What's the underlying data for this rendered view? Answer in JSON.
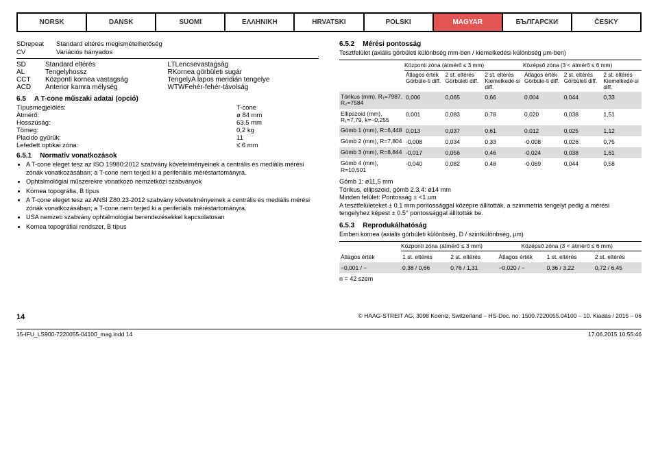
{
  "tabs": [
    "NORSK",
    "DANSK",
    "SUOMI",
    "ΕΛΛΗΝΙΚΗ",
    "HRVATSKI",
    "POLSKI",
    "MAGYAR",
    "БЪЛГАРСКИ",
    "ČESKY"
  ],
  "active_tab": 6,
  "glossary_top": [
    {
      "k": "SDrepeat",
      "v": "Standard eltérés megismételhetőség"
    },
    {
      "k": "CV",
      "v": "Variációs hányados"
    }
  ],
  "glossary_pairs": [
    [
      {
        "k": "SD",
        "v": "Standard eltérés"
      },
      {
        "k": "LT",
        "v": "Lencsevastagság"
      }
    ],
    [
      {
        "k": "AL",
        "v": "Tengelyhossz"
      },
      {
        "k": "R",
        "v": "Kornea görbületi sugár"
      }
    ],
    [
      {
        "k": "CCT",
        "v": "Központi kornea vastagság"
      },
      {
        "k": "Tengely",
        "v": "A lapos meridián tengelye"
      }
    ],
    [
      {
        "k": "ACD",
        "v": "Anterior kamra mélység"
      },
      {
        "k": "WTW",
        "v": "Fehér-fehér-távolság"
      }
    ]
  ],
  "sec65": {
    "num": "6.5",
    "title": "A T-cone műszaki adatai (opció)"
  },
  "specs": [
    [
      "Típusmegjelölés:",
      "T-cone"
    ],
    [
      "Átmérő:",
      "ø 84 mm"
    ],
    [
      "Hosszúság:",
      "63,5 mm"
    ],
    [
      "Tömeg:",
      "0,2 kg"
    ],
    [
      "Placido gyűrűk:",
      "11"
    ],
    [
      "Lefedett optikai zóna:",
      "≤ 6 mm"
    ]
  ],
  "sec651": {
    "num": "6.5.1",
    "title": "Normatív vonatkozások"
  },
  "bullets": [
    "A T-cone eleget tesz az ISO 19980:2012 szabvány követelményeinek a centrális és mediális mérési zónák vonatkozásában; a T-cone nem terjed ki a periferiális méréstartományra.",
    "Ophtalmológiai műszerekre vonatkozó nemzetközi szabványok",
    "Kornea topográfia, B típus",
    "A T-cone eleget tesz az ANSI Z80.23-2012 szabvány követelményeinek a centrális és mediális mérési zónák vonatkozásában; a T-cone nem terjed ki a periferiális méréstartományra.",
    "USA nemzeti szabvány ophtalmológiai berendezésekkel kapcsolatosan",
    "Kornea topográfiai rendszer, B típus"
  ],
  "sec652": {
    "num": "6.5.2",
    "title": "Mérési pontosság"
  },
  "subh652": "Tesztfelület (axiális görbületi különbség mm-ben / kiemelkedési különbség μm-ben)",
  "tbl1": {
    "grp1": "Központi zóna (átmérő ≤ 3 mm)",
    "grp2": "Középső zóna (3 < átmérő ≤ 6 mm)",
    "cols": [
      "Átlagos érték Görbüle-ti diff.",
      "2 st. eltérés Görbületi diff.",
      "2 st. eltérés Kiemelkedé-si diff.",
      "Átlagos érték Görbüle-ti diff.",
      "2 st. eltérés Görbületi diff.",
      "2 st. eltérés Kiemelkedé-si diff."
    ],
    "rows": [
      {
        "k": "Tórikus (mm), R₁=7987, R₂=7584",
        "v": [
          "0,006",
          "0,065",
          "0,66",
          "0,004",
          "0,044",
          "0,33"
        ],
        "alt": true
      },
      {
        "k": "Ellipszoid (mm), R₁=7,79, k=−0,255",
        "v": [
          "0,001",
          "0,083",
          "0,78",
          "0,020",
          "0,038",
          "1,51"
        ],
        "alt": false
      },
      {
        "k": "Gömb 1 (mm), R=6,448",
        "v": [
          "0,013",
          "0,037",
          "0,61",
          "0,012",
          "0,025",
          "1,12"
        ],
        "alt": true
      },
      {
        "k": "Gömb 2 (mm), R=7,804",
        "v": [
          "-0,008",
          "0,034",
          "0,33",
          "-0,008",
          "0,026",
          "0,75"
        ],
        "alt": false
      },
      {
        "k": "Gömb 3 (mm), R=8,844",
        "v": [
          "-0,017",
          "0,056",
          "0,46",
          "-0,024",
          "0,038",
          "1,61"
        ],
        "alt": true
      },
      {
        "k": "Gömb 4 (mm), R=10,501",
        "v": [
          "-0,040",
          "0,082",
          "0,48",
          "-0,069",
          "0,044",
          "0,58"
        ],
        "alt": false
      }
    ]
  },
  "belowtbl": [
    "Gömb 1: ø11,5 mm",
    "Tórikus, ellipszoid, gömb 2,3,4: ø14 mm",
    "Minden felület: Pontosság ± <1 um",
    "A tesztfelületeket ± 0.1 mm pontossággal középre állították, a szimmetria tengelyt pedig a mérési tengelyhez képest ± 0.5° pontossággal állították be."
  ],
  "sec653": {
    "num": "6.5.3",
    "title": "Reprodukálhatóság"
  },
  "subh653": "Emberi kornea (axiális görbületi különbség, D / szintkülönbség, μm)",
  "tbl2": {
    "grp1": "Központi zóna (átmérő ≤ 3 mm)",
    "grp2": "Középső zóna (3 < átmérő ≤ 6 mm)",
    "cols": [
      "Átlagos érték",
      "1 st. eltérés",
      "2 st. eltérés",
      "Átlagos érték",
      "1 st. eltérés",
      "2 st. eltérés"
    ],
    "rows": [
      {
        "v": [
          "−0,001 / −",
          "0,38 / 0,66",
          "0,76 / 1,31",
          "−0,020 / −",
          "0,36 / 3,22",
          "0,72 / 6,45"
        ],
        "alt": true
      }
    ]
  },
  "nline": "n = 42 szem",
  "page_number": "14",
  "copyright": "© HAAG-STREIT AG, 3098 Koeniz, Switzerland – HS-Doc. no. 1500.7220055.04100 – 10. Kiadás / 2015 – 06",
  "footer_left": "15-IFU_LS900-7220055-04100_mag.indd   14",
  "footer_right": "17.06.2015   10:55:46"
}
